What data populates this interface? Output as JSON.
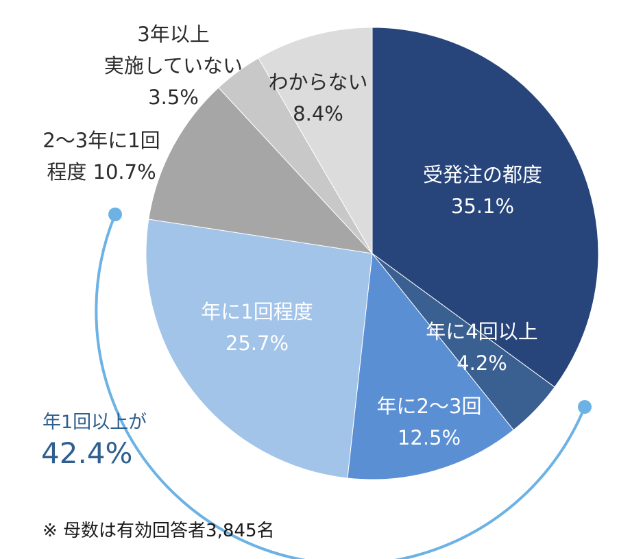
{
  "chart_data": {
    "type": "pie",
    "start_angle_deg": 0,
    "direction": "clockwise",
    "slices": [
      {
        "label_lines": [
          "受発注の都度",
          "35.1%"
        ],
        "value": 35.1,
        "color": "#27457a",
        "label_color": "light"
      },
      {
        "label_lines": [
          "年に4回以上",
          "4.2%"
        ],
        "value": 4.2,
        "color": "#3a5f91",
        "label_color": "light"
      },
      {
        "label_lines": [
          "年に2〜3回",
          "12.5%"
        ],
        "value": 12.5,
        "color": "#5b8fd4",
        "label_color": "light"
      },
      {
        "label_lines": [
          "年に1回程度",
          "25.7%"
        ],
        "value": 25.7,
        "color": "#a2c4e8",
        "label_color": "light"
      },
      {
        "label_lines": [
          "2〜3年に1回",
          "程度 10.7%"
        ],
        "value": 10.7,
        "color": "#a6a6a6",
        "label_color": "dark"
      },
      {
        "label_lines": [
          "3年以上",
          "実施していない",
          "3.5%"
        ],
        "value": 3.5,
        "color": "#c8c8c8",
        "label_color": "dark"
      },
      {
        "label_lines": [
          "わからない",
          "8.4%"
        ],
        "value": 8.4,
        "color": "#dcdcdc",
        "label_color": "dark"
      }
    ],
    "summary": {
      "label": "年1回以上が",
      "value_text": "42.4%",
      "color": "#6cb2e4",
      "text_color": "#2e5f8f"
    }
  },
  "footnote": "※ 母数は有効回答者3,845名"
}
